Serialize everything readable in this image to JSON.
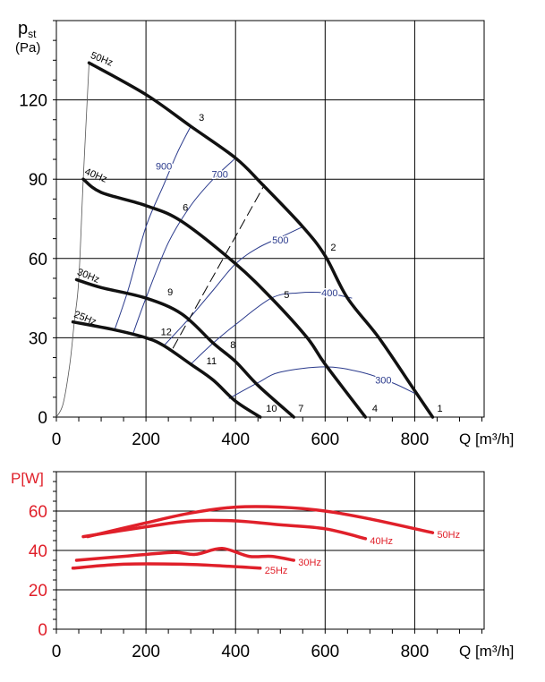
{
  "chart_data": [
    {
      "type": "line",
      "title": "",
      "ylabel": "p_st (Pa)",
      "ylabel_main": "p",
      "ylabel_sub": "st",
      "ylabel_unit": "(Pa)",
      "xlabel": "Q [m³/h]",
      "xlim": [
        0,
        955
      ],
      "ylim": [
        0,
        150
      ],
      "xticks": [
        0,
        200,
        400,
        600,
        800
      ],
      "yticks": [
        0,
        30,
        60,
        90,
        120
      ],
      "grid": true,
      "series": [
        {
          "name": "50Hz",
          "x": [
            73,
            200,
            300,
            400,
            460,
            550,
            600,
            650,
            720,
            800,
            840
          ],
          "y": [
            134,
            122,
            110,
            98,
            88,
            72,
            61,
            45,
            30,
            10,
            0
          ]
        },
        {
          "name": "40Hz",
          "x": [
            60,
            100,
            200,
            280,
            400,
            480,
            560,
            600,
            690
          ],
          "y": [
            90,
            85,
            80,
            74,
            58,
            45,
            30,
            20,
            0
          ]
        },
        {
          "name": "30Hz",
          "x": [
            45,
            100,
            200,
            280,
            350,
            400,
            450,
            530
          ],
          "y": [
            52,
            49,
            45,
            39,
            28,
            21,
            12,
            0
          ]
        },
        {
          "name": "25Hz",
          "x": [
            37,
            130,
            200,
            240,
            300,
            350,
            400,
            455
          ],
          "y": [
            36,
            33,
            30,
            27,
            20,
            14,
            6,
            0
          ]
        }
      ],
      "system_curve": {
        "x": [
          0,
          15,
          30,
          40,
          50,
          60,
          73
        ],
        "y": [
          0,
          5,
          20,
          36,
          52,
          90,
          134
        ]
      },
      "iso_lines": [
        {
          "name": "900",
          "x": [
            130,
            160,
            200,
            240,
            270,
            300
          ],
          "y": [
            33,
            48,
            72,
            88,
            100,
            110
          ],
          "label_at": [
            240,
            95
          ]
        },
        {
          "name": "700",
          "x": [
            170,
            200,
            250,
            300,
            350,
            400
          ],
          "y": [
            31,
            45,
            66,
            80,
            90,
            98
          ],
          "label_at": [
            365,
            92
          ]
        },
        {
          "name": "500",
          "x": [
            240,
            300,
            350,
            400,
            450,
            500,
            550
          ],
          "y": [
            27,
            38,
            48,
            58,
            64,
            68,
            72
          ],
          "label_at": [
            500,
            67
          ]
        },
        {
          "name": "400",
          "x": [
            300,
            350,
            400,
            480,
            540,
            600,
            660
          ],
          "y": [
            20,
            28,
            35,
            45,
            47,
            47,
            45
          ],
          "label_at": [
            610,
            47
          ]
        },
        {
          "name": "300",
          "x": [
            385,
            450,
            500,
            600,
            680,
            750,
            800
          ],
          "y": [
            7,
            13,
            17,
            19,
            17,
            13,
            9
          ],
          "label_at": [
            730,
            14
          ]
        }
      ],
      "dashed_line": {
        "x": [
          260,
          465
        ],
        "y": [
          26,
          88
        ]
      },
      "points": [
        {
          "label": "1",
          "x": 850,
          "y": 2
        },
        {
          "label": "2",
          "x": 612,
          "y": 63
        },
        {
          "label": "3",
          "x": 318,
          "y": 112
        },
        {
          "label": "4",
          "x": 705,
          "y": 2
        },
        {
          "label": "5",
          "x": 508,
          "y": 45
        },
        {
          "label": "6",
          "x": 282,
          "y": 78
        },
        {
          "label": "7",
          "x": 540,
          "y": 2
        },
        {
          "label": "8",
          "x": 388,
          "y": 26
        },
        {
          "label": "9",
          "x": 248,
          "y": 46
        },
        {
          "label": "10",
          "x": 468,
          "y": 2
        },
        {
          "label": "11",
          "x": 335,
          "y": 20
        },
        {
          "label": "12",
          "x": 233,
          "y": 31
        }
      ],
      "series_labels": [
        {
          "text": "50Hz",
          "x": 75,
          "y": 136
        },
        {
          "text": "40Hz",
          "x": 62,
          "y": 92
        },
        {
          "text": "30Hz",
          "x": 45,
          "y": 54
        },
        {
          "text": "25Hz",
          "x": 38,
          "y": 38
        }
      ]
    },
    {
      "type": "line",
      "ylabel": "P[W]",
      "xlabel": "Q [m³/h]",
      "xlim": [
        0,
        955
      ],
      "ylim": [
        0,
        80
      ],
      "xticks": [
        0,
        200,
        400,
        600,
        800
      ],
      "yticks": [
        0,
        20,
        40,
        60
      ],
      "grid": true,
      "color": "#e0202a",
      "series": [
        {
          "name": "50Hz",
          "x": [
            70,
            200,
            300,
            400,
            500,
            600,
            700,
            840
          ],
          "y": [
            47,
            54,
            59,
            62,
            62,
            60,
            56,
            49
          ]
        },
        {
          "name": "40Hz",
          "x": [
            60,
            200,
            300,
            400,
            500,
            600,
            690
          ],
          "y": [
            47,
            52,
            55,
            55,
            53,
            51,
            46
          ]
        },
        {
          "name": "30Hz",
          "x": [
            45,
            150,
            260,
            310,
            370,
            430,
            480,
            530
          ],
          "y": [
            35,
            37,
            39,
            38,
            41,
            37,
            37,
            35
          ]
        },
        {
          "name": "25Hz",
          "x": [
            37,
            150,
            280,
            380,
            455
          ],
          "y": [
            31,
            33,
            33,
            32,
            31
          ]
        }
      ]
    }
  ]
}
